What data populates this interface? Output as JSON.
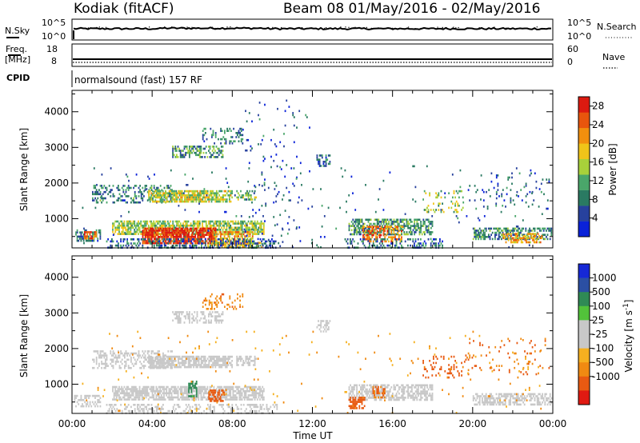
{
  "header": {
    "station": "Kodiak (fitACF)",
    "beam_date": "Beam 08  01/May/2016 - 02/May/2016"
  },
  "summary_panel": {
    "nsky_label": "N.Sky",
    "nsearch_label": "N.Search",
    "noise_ticks_left": [
      "10^5",
      "10^0"
    ],
    "noise_ticks_right": [
      "10^5",
      "10^0"
    ],
    "freq_label_1": "Freq.",
    "freq_label_2": "[MHz]",
    "freq_ticks": [
      "18",
      "8"
    ],
    "nave_label": "Nave",
    "nave_ticks": [
      "60",
      "0"
    ],
    "cpid_label": "CPID",
    "program": "normalsound (fast) 157 RF"
  },
  "x_axis": {
    "label": "Time UT",
    "ticks": [
      "00:00",
      "04:00",
      "08:00",
      "12:00",
      "16:00",
      "20:00",
      "00:00"
    ]
  },
  "colors": {
    "power_scale": [
      "#0a22d9",
      "#27419d",
      "#2a7a62",
      "#4aa66a",
      "#a8d13a",
      "#f0c419",
      "#f28f0e",
      "#e8550d",
      "#dc1a10"
    ],
    "velocity_scale": [
      "#e01a12",
      "#e85a12",
      "#f08a12",
      "#f5b020",
      "#c8c8c8",
      "#c8c8c8",
      "#52c23a",
      "#2f8a55",
      "#2b4fa3",
      "#1628d6"
    ]
  },
  "chart_data": [
    {
      "type": "heatmap",
      "quantity": "power",
      "ylabel": "Slant Range [km]",
      "xlabel": "",
      "xlim": [
        0,
        24
      ],
      "ylim": [
        180,
        4600
      ],
      "yticks": [
        "1000",
        "2000",
        "3000",
        "4000"
      ],
      "colorbar": {
        "label": "Power [dB]",
        "ticks": [
          "4",
          "8",
          "12",
          "16",
          "20",
          "24",
          "28"
        ],
        "range": [
          0,
          30
        ]
      },
      "regions": [
        {
          "t0": 0.1,
          "t1": 1.4,
          "r0": 400,
          "r1": 700,
          "v": 8,
          "d": 0.45
        },
        {
          "t0": 0.6,
          "t1": 1.2,
          "r0": 450,
          "r1": 650,
          "v": 22,
          "d": 0.6
        },
        {
          "t0": 2.0,
          "t1": 9.6,
          "r0": 550,
          "r1": 950,
          "v": 14,
          "d": 0.7
        },
        {
          "t0": 3.5,
          "t1": 7.2,
          "r0": 300,
          "r1": 750,
          "v": 26,
          "d": 0.85
        },
        {
          "t0": 7.0,
          "t1": 9.0,
          "r0": 280,
          "r1": 650,
          "v": 20,
          "d": 0.6
        },
        {
          "t0": 6.5,
          "t1": 9.5,
          "r0": 200,
          "r1": 350,
          "v": 18,
          "d": 0.5
        },
        {
          "t0": 1.7,
          "t1": 10.2,
          "r0": 200,
          "r1": 450,
          "v": 6,
          "d": 0.35
        },
        {
          "t0": 1.0,
          "t1": 5.0,
          "r0": 1450,
          "r1": 1950,
          "v": 8,
          "d": 0.35
        },
        {
          "t0": 3.8,
          "t1": 8.0,
          "r0": 1500,
          "r1": 1800,
          "v": 15,
          "d": 0.75
        },
        {
          "t0": 8.2,
          "t1": 9.2,
          "r0": 1550,
          "r1": 1800,
          "v": 12,
          "d": 0.5
        },
        {
          "t0": 5.0,
          "t1": 7.5,
          "r0": 2750,
          "r1": 3050,
          "v": 10,
          "d": 0.5
        },
        {
          "t0": 6.5,
          "t1": 8.5,
          "r0": 3100,
          "r1": 3550,
          "v": 8,
          "d": 0.25
        },
        {
          "t0": 12.2,
          "t1": 12.9,
          "r0": 2450,
          "r1": 2800,
          "v": 7,
          "d": 0.5
        },
        {
          "t0": 13.8,
          "t1": 18.0,
          "r0": 550,
          "r1": 1000,
          "v": 10,
          "d": 0.6
        },
        {
          "t0": 14.5,
          "t1": 16.5,
          "r0": 380,
          "r1": 800,
          "v": 22,
          "d": 0.55
        },
        {
          "t0": 13.6,
          "t1": 18.5,
          "r0": 200,
          "r1": 450,
          "v": 7,
          "d": 0.35
        },
        {
          "t0": 20.0,
          "t1": 23.9,
          "r0": 400,
          "r1": 750,
          "v": 9,
          "d": 0.55
        },
        {
          "t0": 21.5,
          "t1": 23.5,
          "r0": 350,
          "r1": 600,
          "v": 20,
          "d": 0.55
        },
        {
          "t0": 17.5,
          "t1": 19.5,
          "r0": 1200,
          "r1": 1800,
          "v": 14,
          "d": 0.18
        },
        {
          "t0": 19.5,
          "t1": 23.8,
          "r0": 1300,
          "r1": 2300,
          "v": 6,
          "d": 0.07
        },
        {
          "t0": 8.5,
          "t1": 12.0,
          "r0": 200,
          "r1": 4400,
          "v": 5,
          "d": 0.025
        },
        {
          "t0": 0.5,
          "t1": 23.5,
          "r0": 200,
          "r1": 2500,
          "v": 6,
          "d": 0.012
        }
      ]
    },
    {
      "type": "heatmap",
      "quantity": "velocity",
      "ylabel": "Slant Range [km]",
      "xlabel": "Time UT",
      "xlim": [
        0,
        24
      ],
      "ylim": [
        180,
        4600
      ],
      "yticks": [
        "1000",
        "2000",
        "3000",
        "4000"
      ],
      "colorbar": {
        "label": "Velocity [m s^-1]",
        "ticks": [
          "1000",
          "500",
          "100",
          "25",
          "-25",
          "-100",
          "-500",
          "-1000"
        ]
      },
      "regions": [
        {
          "t0": 0.1,
          "t1": 1.4,
          "r0": 400,
          "r1": 700,
          "v": 0,
          "d": 0.45
        },
        {
          "t0": 2.0,
          "t1": 9.6,
          "r0": 550,
          "r1": 950,
          "v": 0,
          "d": 0.72
        },
        {
          "t0": 5.8,
          "t1": 6.2,
          "r0": 650,
          "r1": 1100,
          "v": 150,
          "d": 0.6
        },
        {
          "t0": 6.8,
          "t1": 7.6,
          "r0": 500,
          "r1": 850,
          "v": -200,
          "d": 0.6
        },
        {
          "t0": 1.0,
          "t1": 5.0,
          "r0": 1450,
          "r1": 1950,
          "v": 0,
          "d": 0.35
        },
        {
          "t0": 3.8,
          "t1": 8.0,
          "r0": 1500,
          "r1": 1800,
          "v": 0,
          "d": 0.75
        },
        {
          "t0": 8.2,
          "t1": 9.2,
          "r0": 1550,
          "r1": 1800,
          "v": 0,
          "d": 0.5
        },
        {
          "t0": 5.0,
          "t1": 7.5,
          "r0": 2750,
          "r1": 3050,
          "v": 0,
          "d": 0.45
        },
        {
          "t0": 6.5,
          "t1": 8.5,
          "r0": 3100,
          "r1": 3550,
          "v": -80,
          "d": 0.25
        },
        {
          "t0": 12.2,
          "t1": 12.9,
          "r0": 2450,
          "r1": 2800,
          "v": 0,
          "d": 0.5
        },
        {
          "t0": 13.8,
          "t1": 18.0,
          "r0": 550,
          "r1": 1000,
          "v": 0,
          "d": 0.6
        },
        {
          "t0": 13.8,
          "t1": 14.6,
          "r0": 350,
          "r1": 650,
          "v": -150,
          "d": 0.7
        },
        {
          "t0": 15.0,
          "t1": 15.6,
          "r0": 650,
          "r1": 950,
          "v": -120,
          "d": 0.5
        },
        {
          "t0": 20.0,
          "t1": 23.9,
          "r0": 400,
          "r1": 750,
          "v": 0,
          "d": 0.55
        },
        {
          "t0": 17.5,
          "t1": 19.5,
          "r0": 1200,
          "r1": 1800,
          "v": -150,
          "d": 0.18
        },
        {
          "t0": 19.5,
          "t1": 23.8,
          "r0": 1300,
          "r1": 2300,
          "v": -100,
          "d": 0.07
        },
        {
          "t0": 1.7,
          "t1": 10.2,
          "r0": 200,
          "r1": 450,
          "v": 0,
          "d": 0.3
        },
        {
          "t0": 0.5,
          "t1": 23.5,
          "r0": 200,
          "r1": 2500,
          "v": -50,
          "d": 0.012
        }
      ]
    }
  ]
}
